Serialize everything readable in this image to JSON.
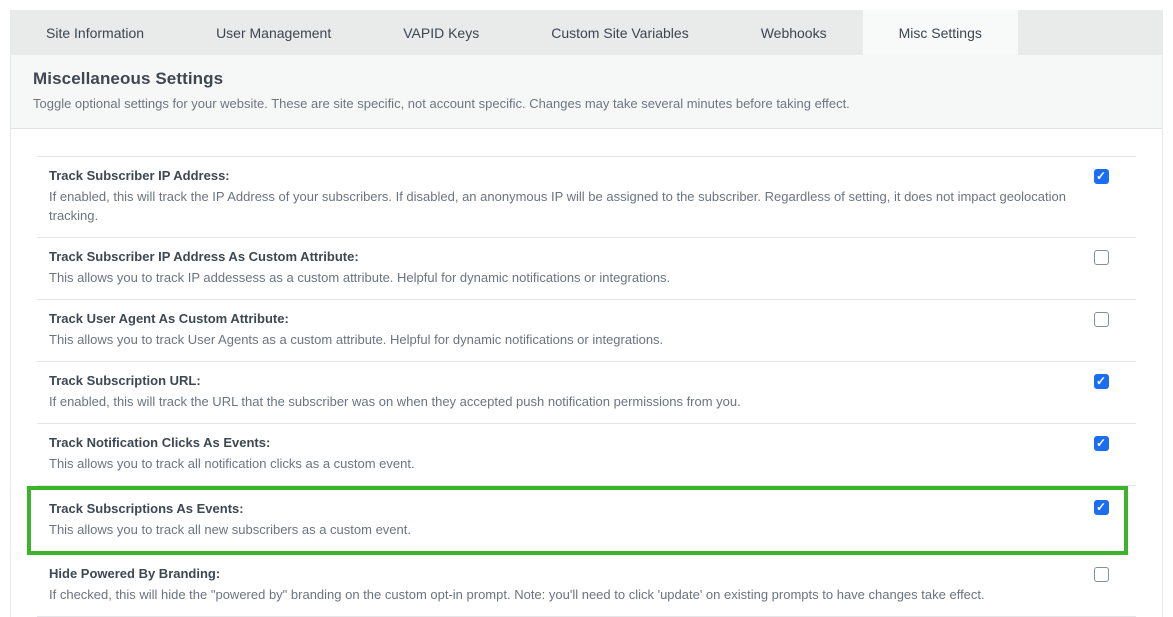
{
  "tabs": [
    {
      "id": "site-information",
      "label": "Site Information",
      "active": false
    },
    {
      "id": "user-management",
      "label": "User Management",
      "active": false
    },
    {
      "id": "vapid-keys",
      "label": "VAPID Keys",
      "active": false
    },
    {
      "id": "custom-site-variables",
      "label": "Custom Site Variables",
      "active": false
    },
    {
      "id": "webhooks",
      "label": "Webhooks",
      "active": false
    },
    {
      "id": "misc-settings",
      "label": "Misc Settings",
      "active": true
    }
  ],
  "header": {
    "title": "Miscellaneous Settings",
    "subtitle": "Toggle optional settings for your website. These are site specific, not account specific. Changes may take several minutes before taking effect."
  },
  "settings": [
    {
      "id": "track-subscriber-ip-address",
      "label": "Track Subscriber IP Address:",
      "description": "If enabled, this will track the IP Address of your subscribers. If disabled, an anonymous IP will be assigned to the subscriber. Regardless of setting, it does not impact geolocation tracking.",
      "checked": true,
      "highlighted": false
    },
    {
      "id": "track-subscriber-ip-address-as-custom-attribute",
      "label": "Track Subscriber IP Address As Custom Attribute:",
      "description": "This allows you to track IP addessess as a custom attribute. Helpful for dynamic notifications or integrations.",
      "checked": false,
      "highlighted": false
    },
    {
      "id": "track-user-agent-as-custom-attribute",
      "label": "Track User Agent As Custom Attribute:",
      "description": "This allows you to track User Agents as a custom attribute. Helpful for dynamic notifications or integrations.",
      "checked": false,
      "highlighted": false
    },
    {
      "id": "track-subscription-url",
      "label": "Track Subscription URL:",
      "description": "If enabled, this will track the URL that the subscriber was on when they accepted push notification permissions from you.",
      "checked": true,
      "highlighted": false
    },
    {
      "id": "track-notification-clicks-as-events",
      "label": "Track Notification Clicks As Events:",
      "description": "This allows you to track all notification clicks as a custom event.",
      "checked": true,
      "highlighted": false
    },
    {
      "id": "track-subscriptions-as-events",
      "label": "Track Subscriptions As Events:",
      "description": "This allows you to track all new subscribers as a custom event.",
      "checked": true,
      "highlighted": true
    },
    {
      "id": "hide-powered-by-branding",
      "label": "Hide Powered By Branding:",
      "description": "If checked, this will hide the \"powered by\" branding on the custom opt-in prompt. Note: you'll need to click 'update' on existing prompts to have changes take effect.",
      "checked": false,
      "highlighted": false
    }
  ],
  "colors": {
    "checkbox_checked": "#1b6ef3",
    "highlight_border": "#3cb42a"
  }
}
